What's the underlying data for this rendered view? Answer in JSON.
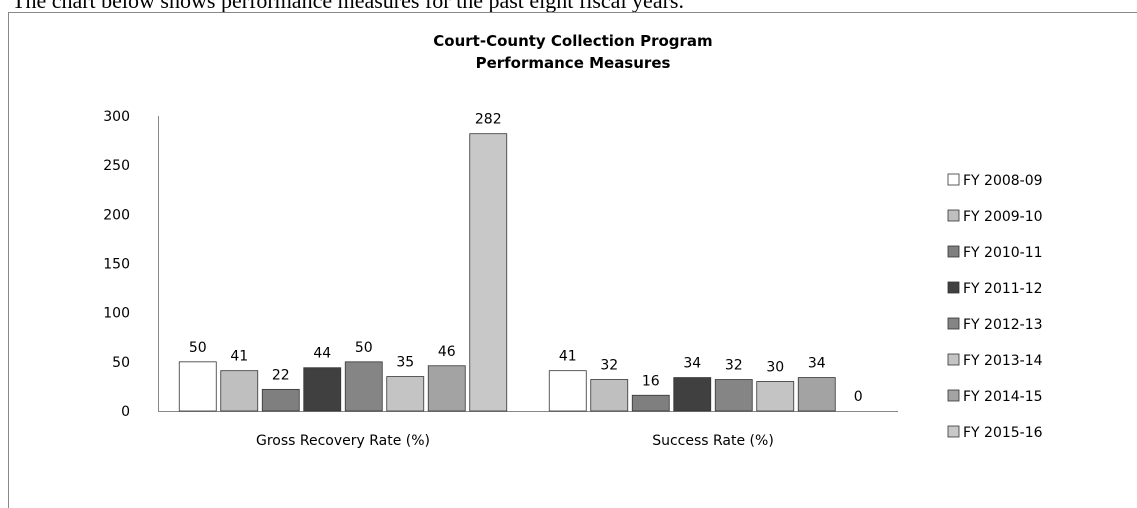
{
  "intro": "The chart below shows performance measures for the past eight fiscal years.",
  "chart_data": {
    "type": "bar",
    "title": [
      "Court-County Collection Program",
      "Performance Measures"
    ],
    "categories": [
      "Gross Recovery Rate (%)",
      "Success Rate (%)"
    ],
    "series": [
      {
        "name": "FY 2008-09",
        "color": "#ffffff",
        "values": [
          50,
          41
        ]
      },
      {
        "name": "FY 2009-10",
        "color": "#bfbfbf",
        "values": [
          41,
          32
        ]
      },
      {
        "name": "FY 2010-11",
        "color": "#7f7f7f",
        "values": [
          22,
          16
        ]
      },
      {
        "name": "FY 2011-12",
        "color": "#404040",
        "values": [
          44,
          34
        ]
      },
      {
        "name": "FY 2012-13",
        "color": "#858585",
        "values": [
          50,
          32
        ]
      },
      {
        "name": "FY 2013-14",
        "color": "#c4c4c4",
        "values": [
          35,
          30
        ]
      },
      {
        "name": "FY 2014-15",
        "color": "#a3a3a3",
        "values": [
          46,
          34
        ]
      },
      {
        "name": "FY 2015-16",
        "color": "#c8c8c8",
        "values": [
          282,
          0
        ]
      }
    ],
    "ylim": [
      0,
      300
    ],
    "yticks": [
      0,
      50,
      100,
      150,
      200,
      250,
      300
    ],
    "grid": false,
    "legend": "right"
  }
}
